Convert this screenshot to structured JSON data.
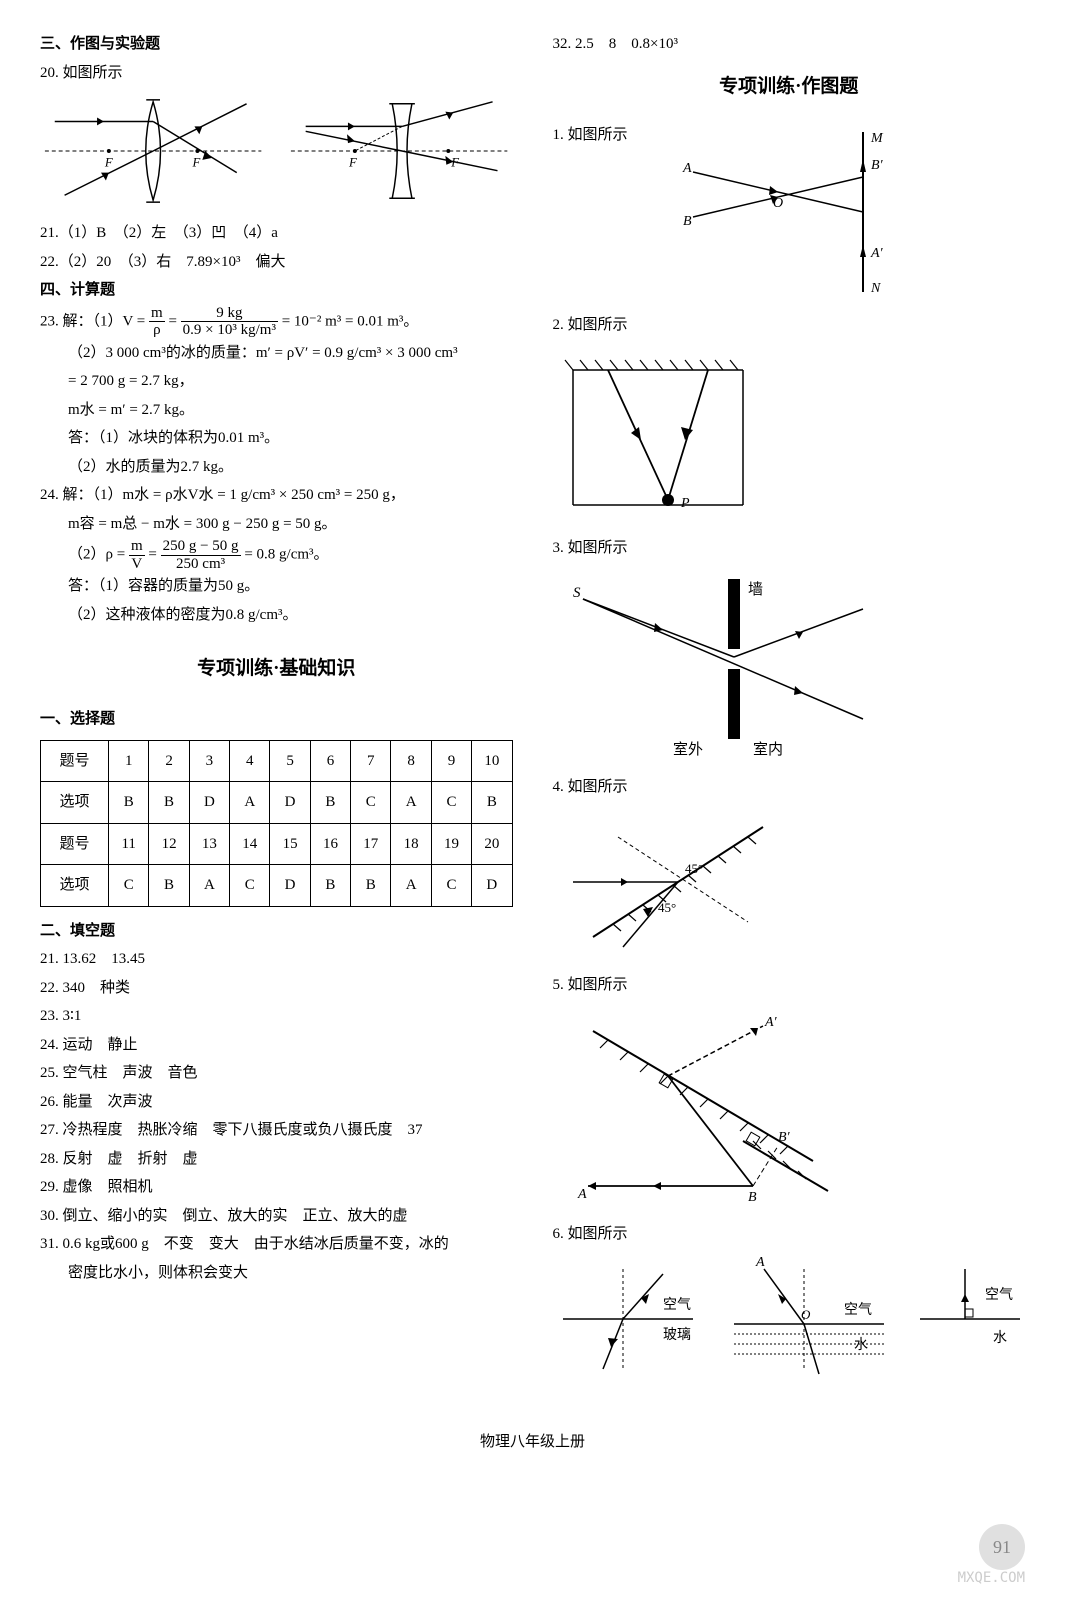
{
  "left": {
    "sec3_title": "三、作图与实验题",
    "q20": "20. 如图所示",
    "q21": "21.（1）B　（2）左　（3）凹　（4）a",
    "q22": "22.（2）20　（3）右　7.89×10³　偏大",
    "sec4_title": "四、计算题",
    "q23_a": "23. 解：（1）V = ",
    "q23_frac1_num": "m",
    "q23_frac1_den": "ρ",
    "q23_b": " = ",
    "q23_frac2_num": "9 kg",
    "q23_frac2_den": "0.9 × 10³ kg/m³",
    "q23_c": " = 10⁻² m³ = 0.01 m³。",
    "q23_2": "（2）3 000 cm³的冰的质量：m′ = ρV′ = 0.9 g/cm³ × 3 000 cm³",
    "q23_2b": "= 2 700 g = 2.7 kg，",
    "q23_2c": "m水 = m′ = 2.7 kg。",
    "q23_ans1": "答：（1）冰块的体积为0.01 m³。",
    "q23_ans2": "（2）水的质量为2.7 kg。",
    "q24_a": "24. 解：（1）m水 = ρ水V水 = 1 g/cm³ × 250 cm³ = 250 g，",
    "q24_b": "m容 = m总 − m水 = 300 g − 250 g = 50 g。",
    "q24_c": "（2）ρ = ",
    "q24_frac1_num": "m",
    "q24_frac1_den": "V",
    "q24_d": " = ",
    "q24_frac2_num": "250 g − 50 g",
    "q24_frac2_den": "250 cm³",
    "q24_e": " = 0.8 g/cm³。",
    "q24_ans1": "答：（1）容器的质量为50 g。",
    "q24_ans2": "（2）这种液体的密度为0.8 g/cm³。",
    "sub_title": "专项训练·基础知识",
    "sec1_title": "一、选择题",
    "table": {
      "rows": [
        [
          "题号",
          "1",
          "2",
          "3",
          "4",
          "5",
          "6",
          "7",
          "8",
          "9",
          "10"
        ],
        [
          "选项",
          "B",
          "B",
          "D",
          "A",
          "D",
          "B",
          "C",
          "A",
          "C",
          "B"
        ],
        [
          "题号",
          "11",
          "12",
          "13",
          "14",
          "15",
          "16",
          "17",
          "18",
          "19",
          "20"
        ],
        [
          "选项",
          "C",
          "B",
          "A",
          "C",
          "D",
          "B",
          "B",
          "A",
          "C",
          "D"
        ]
      ]
    },
    "sec2_title": "二、填空题",
    "f21": "21. 13.62　13.45",
    "f22": "22. 340　种类",
    "f23": "23. 3∶1",
    "f24": "24. 运动　静止",
    "f25": "25. 空气柱　声波　音色",
    "f26": "26. 能量　次声波",
    "f27": "27. 冷热程度　热胀冷缩　零下八摄氏度或负八摄氏度　37",
    "f28": "28. 反射　虚　折射　虚",
    "f29": "29. 虚像　照相机",
    "f30": "30. 倒立、缩小的实　倒立、放大的实　正立、放大的虚",
    "f31": "31. 0.6 kg或600 g　不变　变大　由于水结冰后质量不变，冰的",
    "f31b": "密度比水小，则体积会变大"
  },
  "right": {
    "top_line": "32. 2.5　8　0.8×10³",
    "sub_title": "专项训练·作图题",
    "q1": "1. 如图所示",
    "q2": "2. 如图所示",
    "q3": "3. 如图所示",
    "q4": "4. 如图所示",
    "q5": "5. 如图所示",
    "q6": "6. 如图所示",
    "wall": "墙",
    "outside": "室外",
    "inside": "室内",
    "air": "空气",
    "water": "水",
    "glass": "玻璃",
    "labelA": "A",
    "labelB": "B",
    "labelAp": "A′",
    "labelBp": "B′",
    "labelM": "M",
    "labelN": "N",
    "labelO": "O",
    "labelP": "P",
    "labelS": "S",
    "labelF": "F",
    "angle45": "45°"
  },
  "footer": "物理八年级上册",
  "page_num": "91",
  "watermark": "MXQE.COM",
  "colors": {
    "stroke": "#000",
    "hatch": "#000",
    "dash": "#000",
    "grey": "#ccc"
  }
}
